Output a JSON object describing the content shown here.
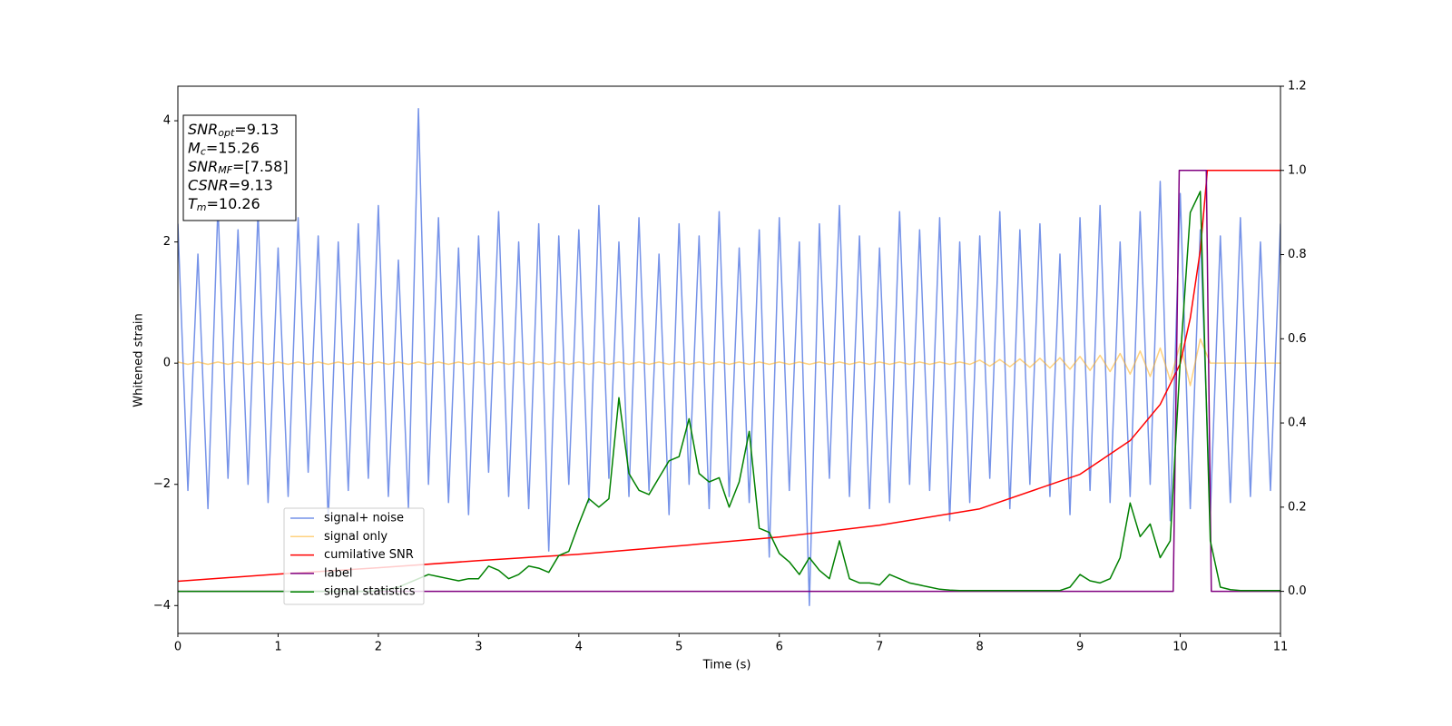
{
  "chart_data": {
    "type": "line",
    "x_label": "Time (s)",
    "y_label": "Whitened strain",
    "xlim": [
      0,
      11
    ],
    "xticks": [
      0,
      1,
      2,
      3,
      4,
      5,
      6,
      7,
      8,
      9,
      10,
      11
    ],
    "ylim": [
      -4.46,
      4.57
    ],
    "yticks": [
      {
        "value": -4,
        "label": "−4"
      },
      {
        "value": -2,
        "label": "−2"
      },
      0,
      2,
      4
    ],
    "y2lim": [
      -0.1,
      1.2
    ],
    "y2ticks": [
      {
        "value": 0,
        "label": "0.0"
      },
      0.2,
      0.4,
      0.6,
      0.8,
      {
        "value": 1,
        "label": "1.0"
      },
      1.2
    ],
    "annotations": [
      {
        "symbol": "SNR",
        "subscript": "opt",
        "text": "=9.13"
      },
      {
        "symbol": "M",
        "subscript": "c",
        "text": "=15.26"
      },
      {
        "symbol": "SNR",
        "subscript": "MF",
        "text": "=[7.58]"
      },
      {
        "symbol": "CSNR",
        "subscript": "",
        "text": "=9.13"
      },
      {
        "symbol": "T",
        "subscript": "m",
        "text": "=10.26"
      }
    ],
    "x": [
      0,
      0.1,
      0.2,
      0.3,
      0.4,
      0.5,
      0.6,
      0.7,
      0.8,
      0.9,
      1,
      1.1,
      1.2,
      1.3,
      1.4,
      1.5,
      1.6,
      1.7,
      1.8,
      1.9,
      2,
      2.1,
      2.2,
      2.3,
      2.4,
      2.5,
      2.6,
      2.7,
      2.8,
      2.9,
      3,
      3.1,
      3.2,
      3.3,
      3.4,
      3.5,
      3.6,
      3.7,
      3.8,
      3.9,
      4,
      4.1,
      4.2,
      4.3,
      4.4,
      4.5,
      4.6,
      4.7,
      4.8,
      4.9,
      5,
      5.1,
      5.2,
      5.3,
      5.4,
      5.5,
      5.6,
      5.7,
      5.8,
      5.9,
      6,
      6.1,
      6.2,
      6.3,
      6.4,
      6.5,
      6.6,
      6.7,
      6.8,
      6.9,
      7,
      7.1,
      7.2,
      7.3,
      7.4,
      7.5,
      7.6,
      7.7,
      7.8,
      7.9,
      8,
      8.1,
      8.2,
      8.3,
      8.4,
      8.5,
      8.6,
      8.7,
      8.8,
      8.9,
      9,
      9.1,
      9.2,
      9.3,
      9.4,
      9.5,
      9.6,
      9.7,
      9.8,
      9.9,
      10,
      10.1,
      10.2,
      10.3,
      10.4,
      10.5,
      10.6,
      10.7,
      10.8,
      10.9,
      11
    ],
    "series": [
      {
        "name": "signal+ noise",
        "color": "#7592e8",
        "axis": "y",
        "values": [
          2.3,
          -2.1,
          1.8,
          -2.4,
          2.6,
          -1.9,
          2.2,
          -2.0,
          2.5,
          -2.3,
          1.9,
          -2.2,
          2.4,
          -1.8,
          2.1,
          -2.6,
          2.0,
          -2.1,
          2.3,
          -1.9,
          2.6,
          -2.2,
          1.7,
          -2.4,
          4.2,
          -2.0,
          2.4,
          -2.3,
          1.9,
          -2.5,
          2.1,
          -1.8,
          2.5,
          -2.2,
          2.0,
          -2.4,
          2.3,
          -3.1,
          2.1,
          -2.0,
          2.2,
          -2.3,
          2.6,
          -1.9,
          2.0,
          -2.2,
          2.4,
          -2.1,
          1.8,
          -2.5,
          2.3,
          -2.0,
          2.1,
          -2.4,
          2.5,
          -2.2,
          1.9,
          -2.3,
          2.2,
          -3.2,
          2.4,
          -2.1,
          2.0,
          -4.0,
          2.3,
          -1.9,
          2.6,
          -2.2,
          2.1,
          -2.4,
          1.9,
          -2.3,
          2.5,
          -2.0,
          2.2,
          -2.1,
          2.4,
          -2.6,
          2.0,
          -2.3,
          2.1,
          -1.9,
          2.5,
          -2.4,
          2.2,
          -2.0,
          2.3,
          -2.2,
          1.8,
          -2.5,
          2.4,
          -2.1,
          2.6,
          -2.3,
          2.0,
          -2.2,
          2.5,
          -2.0,
          3.0,
          -2.6,
          2.8,
          -2.4,
          2.2,
          -2.5,
          2.1,
          -2.3,
          2.4,
          -2.2,
          2.0,
          -2.1,
          2.3
        ]
      },
      {
        "name": "signal only",
        "color": "#ffa500",
        "alpha": 0.5,
        "axis": "y",
        "values": [
          0.02,
          -0.02,
          0.02,
          -0.02,
          0.02,
          -0.02,
          0.02,
          -0.02,
          0.02,
          -0.02,
          0.02,
          -0.02,
          0.02,
          -0.02,
          0.02,
          -0.02,
          0.02,
          -0.02,
          0.02,
          -0.02,
          0.02,
          -0.02,
          0.02,
          -0.02,
          0.02,
          -0.02,
          0.02,
          -0.02,
          0.02,
          -0.02,
          0.02,
          -0.02,
          0.02,
          -0.02,
          0.02,
          -0.02,
          0.02,
          -0.02,
          0.02,
          -0.02,
          0.02,
          -0.02,
          0.02,
          -0.02,
          0.02,
          -0.02,
          0.02,
          -0.02,
          0.02,
          -0.02,
          0.02,
          -0.02,
          0.02,
          -0.02,
          0.02,
          -0.02,
          0.02,
          -0.02,
          0.02,
          -0.02,
          0.02,
          -0.02,
          0.02,
          -0.02,
          0.02,
          -0.02,
          0.02,
          -0.02,
          0.02,
          -0.02,
          0.02,
          -0.02,
          0.02,
          -0.02,
          0.02,
          -0.02,
          0.02,
          -0.02,
          0.02,
          -0.02,
          0.05,
          -0.05,
          0.06,
          -0.06,
          0.07,
          -0.07,
          0.08,
          -0.08,
          0.09,
          -0.1,
          0.11,
          -0.12,
          0.13,
          -0.14,
          0.16,
          -0.18,
          0.2,
          -0.22,
          0.25,
          -0.28,
          0.32,
          -0.37,
          0.4,
          0,
          0,
          0,
          0,
          0,
          0,
          0,
          0
        ]
      },
      {
        "name": "cumilative SNR",
        "color": "#ff0000",
        "axis": "y2",
        "x": [
          0,
          1,
          2,
          3,
          4,
          5,
          6,
          7,
          8,
          9,
          9.5,
          9.8,
          10,
          10.1,
          10.2,
          10.26,
          10.27,
          11
        ],
        "values": [
          0.024,
          0.041,
          0.056,
          0.073,
          0.088,
          0.108,
          0.129,
          0.157,
          0.196,
          0.278,
          0.358,
          0.444,
          0.541,
          0.649,
          0.81,
          0.97,
          1,
          1
        ]
      },
      {
        "name": "label",
        "color": "#800080",
        "axis": "y2",
        "x": [
          0,
          9.93,
          9.99,
          10.26,
          10.31,
          11
        ],
        "values": [
          0,
          0,
          1,
          1,
          0,
          0
        ]
      },
      {
        "name": "signal statistics",
        "color": "#008000",
        "axis": "y2",
        "values": [
          0,
          0,
          0,
          0,
          0,
          0,
          0,
          0,
          0,
          0,
          0,
          0,
          0,
          0,
          0,
          0,
          0,
          0,
          0,
          0,
          0.002,
          0.005,
          0.01,
          0.02,
          0.03,
          0.04,
          0.035,
          0.03,
          0.025,
          0.03,
          0.03,
          0.06,
          0.05,
          0.03,
          0.04,
          0.06,
          0.055,
          0.045,
          0.085,
          0.095,
          0.16,
          0.22,
          0.2,
          0.22,
          0.46,
          0.28,
          0.24,
          0.23,
          0.27,
          0.31,
          0.32,
          0.41,
          0.28,
          0.26,
          0.27,
          0.2,
          0.26,
          0.38,
          0.15,
          0.14,
          0.09,
          0.07,
          0.04,
          0.08,
          0.05,
          0.03,
          0.12,
          0.03,
          0.02,
          0.02,
          0.015,
          0.04,
          0.03,
          0.02,
          0.015,
          0.01,
          0.005,
          0.003,
          0.002,
          0.002,
          0.002,
          0.002,
          0.002,
          0.002,
          0.002,
          0.002,
          0.002,
          0.002,
          0.002,
          0.01,
          0.04,
          0.025,
          0.02,
          0.03,
          0.08,
          0.21,
          0.13,
          0.16,
          0.08,
          0.12,
          0.55,
          0.9,
          0.95,
          0.12,
          0.01,
          0.004,
          0.002,
          0.002,
          0.002,
          0.002,
          0.002
        ]
      }
    ]
  }
}
